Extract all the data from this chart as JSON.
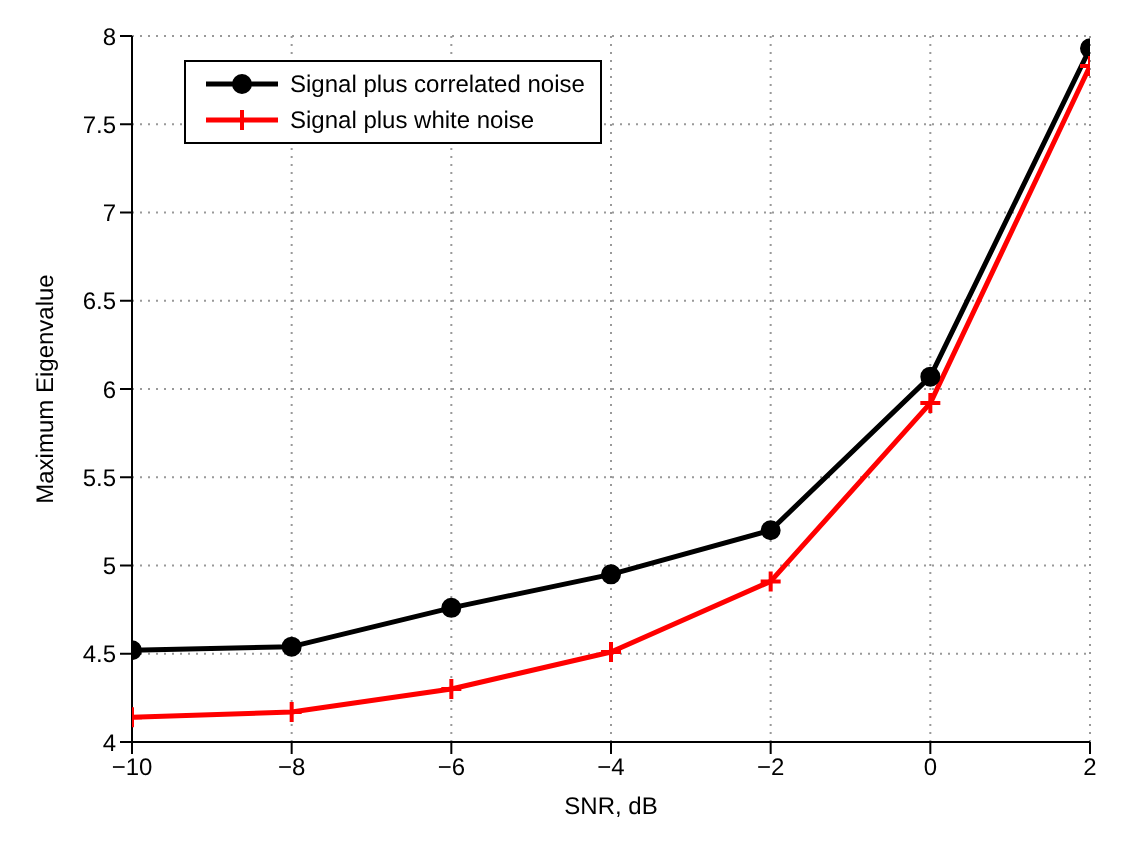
{
  "chart_data": {
    "type": "line",
    "xlabel": "SNR, dB",
    "ylabel": "Maximum Eigenvalue",
    "x": [
      -10,
      -8,
      -6,
      -4,
      -2,
      0,
      2
    ],
    "series": [
      {
        "name": "Signal plus correlated noise",
        "color": "#000000",
        "marker": "circle",
        "values": [
          4.52,
          4.54,
          4.76,
          4.95,
          5.2,
          6.07,
          7.93
        ]
      },
      {
        "name": "Signal plus white noise",
        "color": "#ff0000",
        "marker": "cross",
        "values": [
          4.14,
          4.17,
          4.3,
          4.51,
          4.91,
          5.92,
          7.83
        ]
      }
    ],
    "xlim": [
      -10,
      2
    ],
    "xticks": [
      -10,
      -8,
      -6,
      -4,
      -2,
      0,
      2
    ],
    "ylim": [
      4,
      8
    ],
    "yticks": [
      4,
      4.5,
      5,
      5.5,
      6,
      6.5,
      7,
      7.5,
      8
    ],
    "grid": true,
    "legend": "top left",
    "line_style": "solid"
  }
}
